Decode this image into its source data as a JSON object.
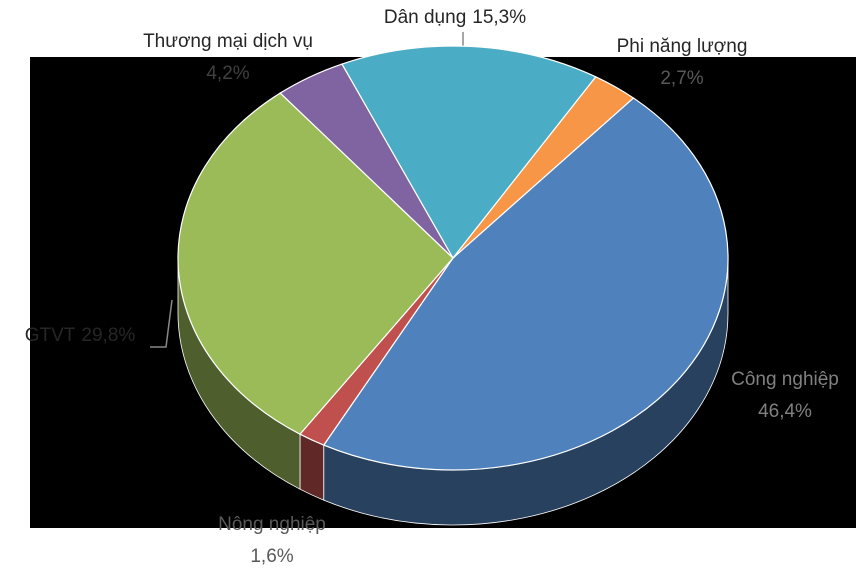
{
  "chart_data": {
    "type": "pie",
    "three_d": true,
    "categories": [
      "Công nghiệp",
      "Nông nghiệp",
      "GTVT",
      "Thương mại dịch vụ",
      "Dân dụng",
      "Phi năng lượng"
    ],
    "values": [
      46.4,
      1.6,
      29.8,
      4.2,
      15.3,
      2.7
    ],
    "value_labels": [
      "46,4%",
      "1,6%",
      "29,8%",
      "4,2%",
      "15,3%",
      "2,7%"
    ],
    "colors": [
      "#4f81bd",
      "#c0504d",
      "#9bbb59",
      "#8064a2",
      "#4bacc6",
      "#f79646"
    ]
  }
}
